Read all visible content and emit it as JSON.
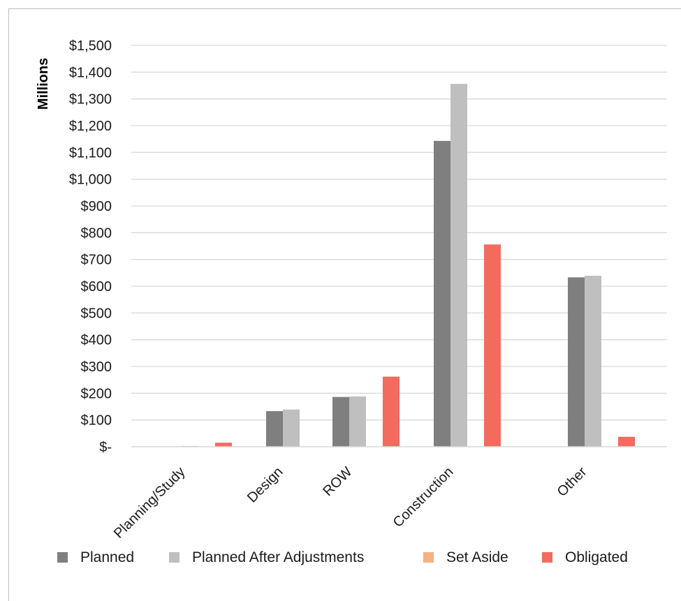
{
  "chart_data": {
    "type": "bar",
    "ylabel": "Millions",
    "ylim": [
      0,
      1500
    ],
    "ytick_values": [
      0,
      100,
      200,
      300,
      400,
      500,
      600,
      700,
      800,
      900,
      1000,
      1100,
      1200,
      1300,
      1400,
      1500
    ],
    "ytick_labels": [
      "$-",
      "$100",
      "$200",
      "$300",
      "$400",
      "$500",
      "$600",
      "$700",
      "$800",
      "$900",
      "$1,000",
      "$1,100",
      "$1,200",
      "$1,300",
      "$1,400",
      "$1,500"
    ],
    "categories": [
      "Planning/Study",
      "Design",
      "ROW",
      "Construction",
      "Other"
    ],
    "grid": true,
    "legend_position": "bottom",
    "series": [
      {
        "name": "Planned",
        "color": "#7f7f7f",
        "values": [
          0,
          133,
          186,
          1143,
          633
        ]
      },
      {
        "name": "Planned After Adjustments",
        "color": "#bfbfbf",
        "values": [
          3,
          139,
          188,
          1356,
          639
        ]
      },
      {
        "name": "Set Aside",
        "color": "#f4b183",
        "values": [
          0,
          0,
          0,
          0,
          0
        ]
      },
      {
        "name": "Obligated",
        "color": "#f26b5e",
        "values": [
          15,
          0,
          262,
          756,
          37
        ]
      }
    ]
  }
}
